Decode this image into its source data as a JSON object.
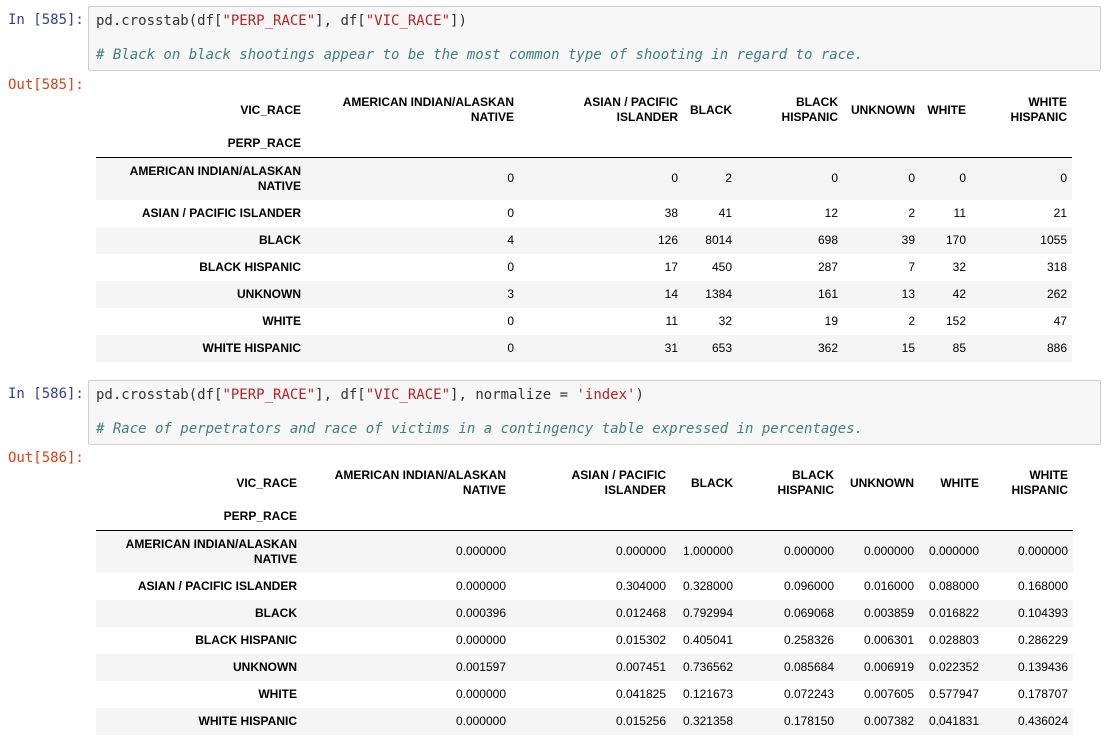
{
  "cells": [
    {
      "in_prompt": "In [585]:",
      "out_prompt": "Out[585]:",
      "code": {
        "l1_a": "pd.crosstab(df[",
        "l1_s1": "\"PERP_RACE\"",
        "l1_b": "], df[",
        "l1_s2": "\"VIC_RACE\"",
        "l1_c": "])",
        "l1_d": "",
        "l1_s3": "",
        "l1_e": "",
        "comment": "# Black on black shootings appear to be the most common type of shooting in regard to race."
      },
      "table": {
        "columns_name": "VIC_RACE",
        "index_name": "PERP_RACE",
        "columns": [
          "AMERICAN INDIAN/ALASKAN NATIVE",
          "ASIAN / PACIFIC ISLANDER",
          "BLACK",
          "BLACK HISPANIC",
          "UNKNOWN",
          "WHITE",
          "WHITE HISPANIC"
        ],
        "rows": [
          {
            "label": "AMERICAN INDIAN/ALASKAN NATIVE",
            "values": [
              "0",
              "0",
              "2",
              "0",
              "0",
              "0",
              "0"
            ]
          },
          {
            "label": "ASIAN / PACIFIC ISLANDER",
            "values": [
              "0",
              "38",
              "41",
              "12",
              "2",
              "11",
              "21"
            ]
          },
          {
            "label": "BLACK",
            "values": [
              "4",
              "126",
              "8014",
              "698",
              "39",
              "170",
              "1055"
            ]
          },
          {
            "label": "BLACK HISPANIC",
            "values": [
              "0",
              "17",
              "450",
              "287",
              "7",
              "32",
              "318"
            ]
          },
          {
            "label": "UNKNOWN",
            "values": [
              "3",
              "14",
              "1384",
              "161",
              "13",
              "42",
              "262"
            ]
          },
          {
            "label": "WHITE",
            "values": [
              "0",
              "11",
              "32",
              "19",
              "2",
              "152",
              "47"
            ]
          },
          {
            "label": "WHITE HISPANIC",
            "values": [
              "0",
              "31",
              "653",
              "362",
              "15",
              "85",
              "886"
            ]
          }
        ]
      }
    },
    {
      "in_prompt": "In [586]:",
      "out_prompt": "Out[586]:",
      "code": {
        "l1_a": "pd.crosstab(df[",
        "l1_s1": "\"PERP_RACE\"",
        "l1_b": "], df[",
        "l1_s2": "\"VIC_RACE\"",
        "l1_c": "], normalize = ",
        "l1_d": "",
        "l1_s3": "'index'",
        "l1_e": ")",
        "comment": "# Race of perpetrators and race of victims in a contingency table expressed in percentages."
      },
      "table": {
        "columns_name": "VIC_RACE",
        "index_name": "PERP_RACE",
        "columns": [
          "AMERICAN INDIAN/ALASKAN NATIVE",
          "ASIAN / PACIFIC ISLANDER",
          "BLACK",
          "BLACK HISPANIC",
          "UNKNOWN",
          "WHITE",
          "WHITE HISPANIC"
        ],
        "rows": [
          {
            "label": "AMERICAN INDIAN/ALASKAN NATIVE",
            "values": [
              "0.000000",
              "0.000000",
              "1.000000",
              "0.000000",
              "0.000000",
              "0.000000",
              "0.000000"
            ]
          },
          {
            "label": "ASIAN / PACIFIC ISLANDER",
            "values": [
              "0.000000",
              "0.304000",
              "0.328000",
              "0.096000",
              "0.016000",
              "0.088000",
              "0.168000"
            ]
          },
          {
            "label": "BLACK",
            "values": [
              "0.000396",
              "0.012468",
              "0.792994",
              "0.069068",
              "0.003859",
              "0.016822",
              "0.104393"
            ]
          },
          {
            "label": "BLACK HISPANIC",
            "values": [
              "0.000000",
              "0.015302",
              "0.405041",
              "0.258326",
              "0.006301",
              "0.028803",
              "0.286229"
            ]
          },
          {
            "label": "UNKNOWN",
            "values": [
              "0.001597",
              "0.007451",
              "0.736562",
              "0.085684",
              "0.006919",
              "0.022352",
              "0.139436"
            ]
          },
          {
            "label": "WHITE",
            "values": [
              "0.000000",
              "0.041825",
              "0.121673",
              "0.072243",
              "0.007605",
              "0.577947",
              "0.178707"
            ]
          },
          {
            "label": "WHITE HISPANIC",
            "values": [
              "0.000000",
              "0.015256",
              "0.321358",
              "0.178150",
              "0.007382",
              "0.041831",
              "0.436024"
            ]
          }
        ]
      }
    }
  ]
}
